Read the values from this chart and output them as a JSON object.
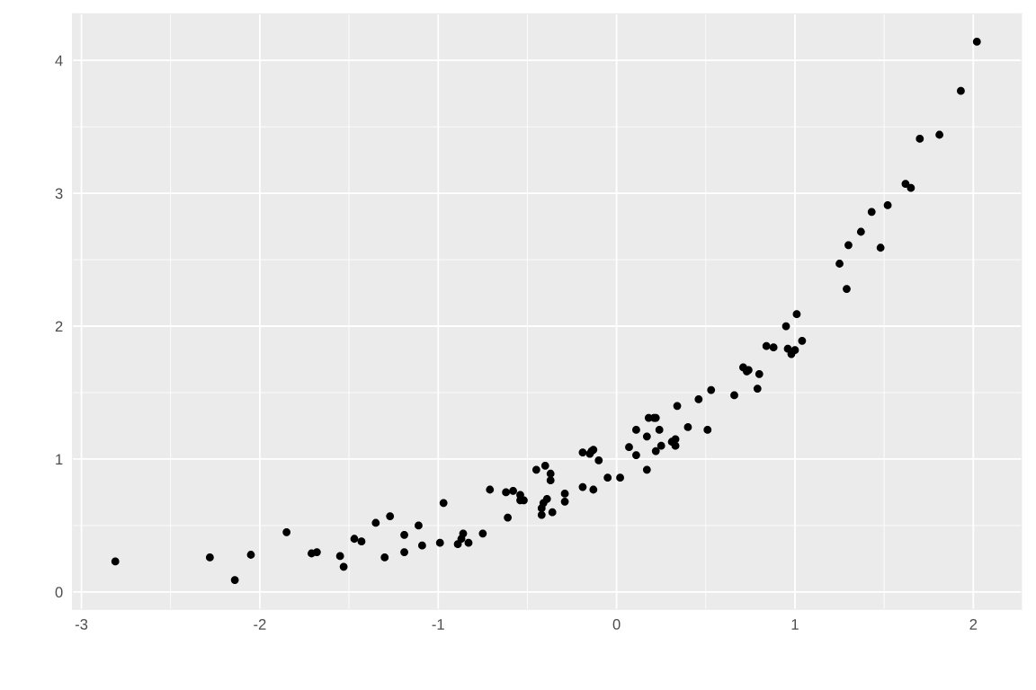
{
  "chart_data": {
    "type": "scatter",
    "x": [
      -2.81,
      -2.28,
      -2.14,
      -2.05,
      -1.85,
      -1.71,
      -1.68,
      -1.55,
      -1.53,
      -1.47,
      -1.43,
      -1.35,
      -1.3,
      -1.27,
      -1.19,
      -1.19,
      -1.11,
      -1.09,
      -0.99,
      -0.97,
      -0.89,
      -0.87,
      -0.86,
      -0.83,
      -0.75,
      -0.71,
      -0.62,
      -0.61,
      -0.58,
      -0.54,
      -0.54,
      -0.52,
      -0.45,
      -0.42,
      -0.42,
      -0.41,
      -0.4,
      -0.39,
      -0.37,
      -0.37,
      -0.36,
      -0.29,
      -0.29,
      -0.19,
      -0.19,
      -0.15,
      -0.14,
      -0.13,
      -0.13,
      -0.1,
      -0.05,
      0.02,
      0.07,
      0.11,
      0.11,
      0.17,
      0.17,
      0.18,
      0.21,
      0.22,
      0.22,
      0.24,
      0.25,
      0.31,
      0.33,
      0.33,
      0.34,
      0.4,
      0.46,
      0.51,
      0.53,
      0.66,
      0.71,
      0.73,
      0.74,
      0.79,
      0.8,
      0.84,
      0.88,
      0.95,
      0.96,
      0.98,
      1.0,
      1.01,
      1.04,
      1.25,
      1.29,
      1.3,
      1.37,
      1.43,
      1.48,
      1.52,
      1.62,
      1.65,
      1.7,
      1.81,
      1.93,
      2.02
    ],
    "series": [
      {
        "color": "#000000",
        "values": [
          0.23,
          0.26,
          0.09,
          0.28,
          0.45,
          0.29,
          0.3,
          0.27,
          0.19,
          0.4,
          0.38,
          0.52,
          0.26,
          0.57,
          0.43,
          0.3,
          0.5,
          0.35,
          0.37,
          0.67,
          0.36,
          0.4,
          0.44,
          0.37,
          0.44,
          0.77,
          0.75,
          0.56,
          0.76,
          0.73,
          0.69,
          0.69,
          0.92,
          0.58,
          0.63,
          0.67,
          0.95,
          0.7,
          0.89,
          0.84,
          0.6,
          0.68,
          0.74,
          1.05,
          0.79,
          1.04,
          1.06,
          1.07,
          0.77,
          0.99,
          0.86,
          0.86,
          1.09,
          1.22,
          1.03,
          1.17,
          0.92,
          1.31,
          1.31,
          1.31,
          1.06,
          1.22,
          1.1,
          1.13,
          1.15,
          1.1,
          1.4,
          1.24,
          1.45,
          1.22,
          1.52,
          1.48,
          1.69,
          1.66,
          1.67,
          1.53,
          1.64,
          1.85,
          1.84,
          2.0,
          1.83,
          1.79,
          1.82,
          2.09,
          1.89,
          2.47,
          2.28,
          2.61,
          2.71,
          2.86,
          2.59,
          2.91,
          3.07,
          3.04,
          3.41,
          3.44,
          3.77,
          4.14
        ]
      }
    ],
    "xlim": [
      -3.05,
      2.27
    ],
    "ylim": [
      -0.13,
      4.35
    ],
    "xticks": [
      -3,
      -2,
      -1,
      0,
      1,
      2
    ],
    "yticks": [
      0,
      1,
      2,
      3,
      4
    ],
    "grid": true,
    "marker": "circle"
  }
}
